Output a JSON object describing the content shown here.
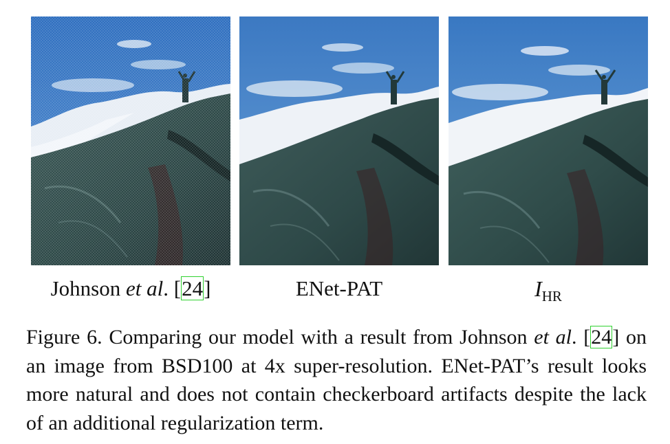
{
  "panels": [
    {
      "label_name": "Johnson ",
      "label_etal": "et al",
      "label_after": ". [",
      "label_ref": "24",
      "label_close": "]"
    },
    {
      "label": "ENet-PAT"
    },
    {
      "label_main": "I",
      "label_sub": "HR"
    }
  ],
  "caption": {
    "fig": "Figure 6.",
    "t1": " Comparing our model with a result from Johnson ",
    "etal1": "et",
    "etal2": "al",
    "t2": ". [",
    "ref": "24",
    "t3": "] on an image from BSD100 at 4x super-resolution. ENet-PAT’s result looks more natural and does not contain checkerboard artifacts despite the lack of an additional regularization term."
  },
  "colors": {
    "citation_box": "#2fd12f",
    "sky": "#3a78c0",
    "rock": "#2f4a4a"
  }
}
